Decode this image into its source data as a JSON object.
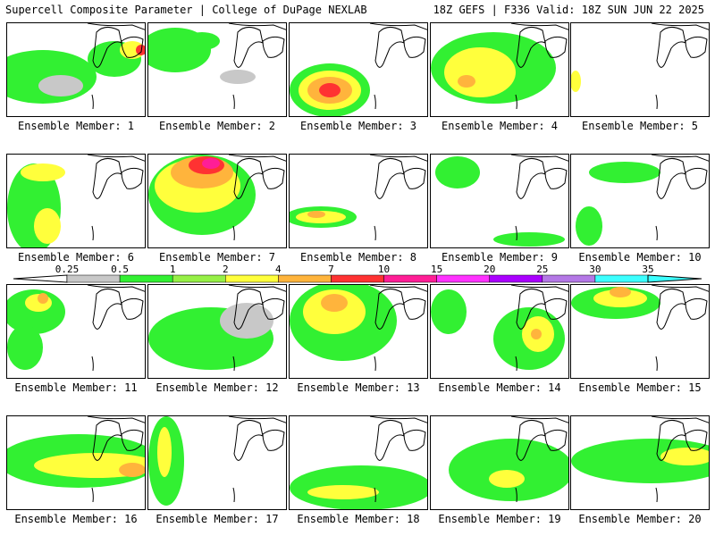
{
  "header": {
    "title_left": "Supercell Composite Parameter | College of DuPage NEXLAB",
    "title_right": "18Z GEFS | F336 Valid: 18Z SUN JUN 22 2025"
  },
  "colors": {
    "background": "#ffffff",
    "map_lines": "#000000",
    "scale": [
      "#c8c8c8",
      "#32f032",
      "#96f046",
      "#ffff3c",
      "#ffb43c",
      "#ff3232",
      "#ff1e96",
      "#ff32ff",
      "#aa00ff",
      "#b478e6",
      "#3cffff"
    ]
  },
  "colorbar": {
    "labels": [
      "0.25",
      "0.5",
      "1",
      "2",
      "4",
      "7",
      "10",
      "15",
      "20",
      "25",
      "30",
      "35"
    ]
  },
  "members": [
    {
      "caption": "Ensemble Member: 1"
    },
    {
      "caption": "Ensemble Member: 2"
    },
    {
      "caption": "Ensemble Member: 3"
    },
    {
      "caption": "Ensemble Member: 4"
    },
    {
      "caption": "Ensemble Member: 5"
    },
    {
      "caption": "Ensemble Member: 6"
    },
    {
      "caption": "Ensemble Member: 7"
    },
    {
      "caption": "Ensemble Member: 8"
    },
    {
      "caption": "Ensemble Member: 9"
    },
    {
      "caption": "Ensemble Member: 10"
    },
    {
      "caption": "Ensemble Member: 11"
    },
    {
      "caption": "Ensemble Member: 12"
    },
    {
      "caption": "Ensemble Member: 13"
    },
    {
      "caption": "Ensemble Member: 14"
    },
    {
      "caption": "Ensemble Member: 15"
    },
    {
      "caption": "Ensemble Member: 16"
    },
    {
      "caption": "Ensemble Member: 17"
    },
    {
      "caption": "Ensemble Member: 18"
    },
    {
      "caption": "Ensemble Member: 19"
    },
    {
      "caption": "Ensemble Member: 20"
    }
  ]
}
